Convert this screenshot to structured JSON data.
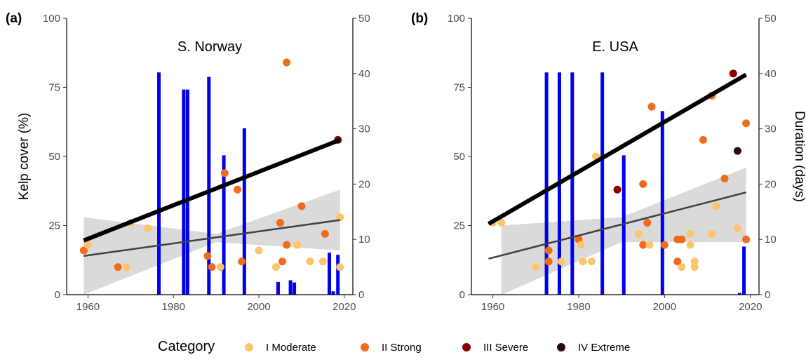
{
  "legend": {
    "title": "Category",
    "items": [
      {
        "label": "I Moderate",
        "color": "#fdc46c"
      },
      {
        "label": "II Strong",
        "color": "#f26a1b"
      },
      {
        "label": "III Severe",
        "color": "#8b0000"
      },
      {
        "label": "IV Extreme",
        "color": "#2a0a0a"
      }
    ]
  },
  "chart_data": [
    {
      "type": "scatter",
      "panel_label": "(a)",
      "title": "S. Norway",
      "ylabel": "Kelp cover (%)",
      "y2label": "",
      "xlim": [
        1955,
        2022
      ],
      "ylim": [
        0,
        100
      ],
      "y2lim": [
        0,
        50
      ],
      "xticks": [
        1960,
        1980,
        2000,
        2020
      ],
      "yticks": [
        0,
        25,
        50,
        75,
        100
      ],
      "y2ticks": [
        0,
        10,
        20,
        30,
        40,
        50
      ],
      "ribbon_color": "#d3d3d3",
      "bar_color": "#0000ee",
      "bars": [
        {
          "x": 1976.6,
          "y2": 40.2
        },
        {
          "x": 1982.4,
          "y2": 37.1
        },
        {
          "x": 1983.3,
          "y2": 37.1
        },
        {
          "x": 1988.3,
          "y2": 39.4
        },
        {
          "x": 1991.8,
          "y2": 25.2
        },
        {
          "x": 1996.6,
          "y2": 30.1
        },
        {
          "x": 2004.5,
          "y2": 2.3
        },
        {
          "x": 2007.4,
          "y2": 2.6
        },
        {
          "x": 2008.3,
          "y2": 2.2
        },
        {
          "x": 2016.5,
          "y2": 7.6
        },
        {
          "x": 2017.4,
          "y2": 0.6
        },
        {
          "x": 2018.5,
          "y2": 7.2
        }
      ],
      "points": [
        {
          "x": 1959,
          "y": 16,
          "category": 2
        },
        {
          "x": 1960,
          "y": 18,
          "category": 1
        },
        {
          "x": 1967,
          "y": 10,
          "category": 2
        },
        {
          "x": 1969,
          "y": 10,
          "category": 1
        },
        {
          "x": 1970,
          "y": 26,
          "category": 1
        },
        {
          "x": 1974,
          "y": 24,
          "category": 1
        },
        {
          "x": 1989,
          "y": 10,
          "category": 2
        },
        {
          "x": 1988,
          "y": 14,
          "category": 2
        },
        {
          "x": 1991,
          "y": 10,
          "category": 1
        },
        {
          "x": 1992,
          "y": 44,
          "category": 2
        },
        {
          "x": 1995,
          "y": 38,
          "category": 2
        },
        {
          "x": 1996,
          "y": 12,
          "category": 2
        },
        {
          "x": 2000,
          "y": 16,
          "category": 1
        },
        {
          "x": 2004,
          "y": 10,
          "category": 1
        },
        {
          "x": 2005,
          "y": 26,
          "category": 2
        },
        {
          "x": 2005.5,
          "y": 12,
          "category": 2
        },
        {
          "x": 2006.5,
          "y": 84,
          "category": 2
        },
        {
          "x": 2006.5,
          "y": 18,
          "category": 2
        },
        {
          "x": 2009,
          "y": 18,
          "category": 1
        },
        {
          "x": 2010,
          "y": 32,
          "category": 2
        },
        {
          "x": 2012,
          "y": 12,
          "category": 1
        },
        {
          "x": 2015,
          "y": 12,
          "category": 1
        },
        {
          "x": 2015.5,
          "y": 22,
          "category": 2
        },
        {
          "x": 2018.5,
          "y": 56,
          "category": 3
        },
        {
          "x": 2019,
          "y": 28,
          "category": 1
        },
        {
          "x": 2019,
          "y": 10,
          "category": 1
        }
      ],
      "fit_line": {
        "x": [
          1959,
          2019
        ],
        "y": [
          14,
          27
        ]
      },
      "ribbon": {
        "x": [
          1959,
          1990,
          2019
        ],
        "lower": [
          0,
          19,
          16
        ],
        "upper": [
          28,
          22,
          38
        ]
      },
      "duration_trend": {
        "x": [
          1959,
          2019
        ],
        "y2": [
          9.8,
          28
        ]
      }
    },
    {
      "type": "scatter",
      "panel_label": "(b)",
      "title": "E. USA",
      "ylabel": "",
      "y2label": "Duration (days)",
      "xlim": [
        1955,
        2022
      ],
      "ylim": [
        0,
        100
      ],
      "y2lim": [
        0,
        50
      ],
      "xticks": [
        1960,
        1980,
        2000,
        2020
      ],
      "yticks": [
        0,
        25,
        50,
        75,
        100
      ],
      "y2ticks": [
        0,
        10,
        20,
        30,
        40,
        50
      ],
      "ribbon_color": "#d3d3d3",
      "bar_color": "#0000ee",
      "bars": [
        {
          "x": 1972.5,
          "y2": 40.2
        },
        {
          "x": 1975.5,
          "y2": 40.2
        },
        {
          "x": 1978.5,
          "y2": 40.2
        },
        {
          "x": 1985.5,
          "y2": 40.2
        },
        {
          "x": 1990.5,
          "y2": 25.2
        },
        {
          "x": 1999.5,
          "y2": 33.2
        },
        {
          "x": 2017.5,
          "y2": 0.3
        },
        {
          "x": 2018.5,
          "y2": 8.7
        }
      ],
      "points": [
        {
          "x": 1960,
          "y": 26,
          "category": 1
        },
        {
          "x": 1962,
          "y": 26,
          "category": 1
        },
        {
          "x": 1970,
          "y": 10,
          "category": 1
        },
        {
          "x": 1973,
          "y": 16,
          "category": 2
        },
        {
          "x": 1973,
          "y": 12,
          "category": 2
        },
        {
          "x": 1976,
          "y": 12,
          "category": 1
        },
        {
          "x": 1980,
          "y": 20,
          "category": 2
        },
        {
          "x": 1980.5,
          "y": 18,
          "category": 1
        },
        {
          "x": 1981,
          "y": 12,
          "category": 1
        },
        {
          "x": 1983,
          "y": 12,
          "category": 1
        },
        {
          "x": 1984,
          "y": 50,
          "category": 1
        },
        {
          "x": 1989,
          "y": 38,
          "category": 3
        },
        {
          "x": 1994,
          "y": 22,
          "category": 1
        },
        {
          "x": 1995,
          "y": 40,
          "category": 2
        },
        {
          "x": 1995,
          "y": 18,
          "category": 2
        },
        {
          "x": 1996,
          "y": 26,
          "category": 2
        },
        {
          "x": 1996.5,
          "y": 18,
          "category": 1
        },
        {
          "x": 1997,
          "y": 68,
          "category": 2
        },
        {
          "x": 2000,
          "y": 18,
          "category": 2
        },
        {
          "x": 2003,
          "y": 20,
          "category": 2
        },
        {
          "x": 2003,
          "y": 12,
          "category": 2
        },
        {
          "x": 2004,
          "y": 20,
          "category": 2
        },
        {
          "x": 2004,
          "y": 10,
          "category": 1
        },
        {
          "x": 2006,
          "y": 22,
          "category": 1
        },
        {
          "x": 2006,
          "y": 18,
          "category": 1
        },
        {
          "x": 2007,
          "y": 12,
          "category": 1
        },
        {
          "x": 2007,
          "y": 10,
          "category": 1
        },
        {
          "x": 2009,
          "y": 56,
          "category": 2
        },
        {
          "x": 2011,
          "y": 72,
          "category": 2
        },
        {
          "x": 2011,
          "y": 22,
          "category": 1
        },
        {
          "x": 2012,
          "y": 32,
          "category": 1
        },
        {
          "x": 2014,
          "y": 42,
          "category": 2
        },
        {
          "x": 2016,
          "y": 80,
          "category": 3
        },
        {
          "x": 2017,
          "y": 52,
          "category": 4
        },
        {
          "x": 2017,
          "y": 24,
          "category": 1
        },
        {
          "x": 2019,
          "y": 62,
          "category": 2
        },
        {
          "x": 2019,
          "y": 20,
          "category": 2
        }
      ],
      "fit_line": {
        "x": [
          1959,
          2019
        ],
        "y": [
          13,
          37
        ]
      },
      "ribbon": {
        "x": [
          1962,
          1990,
          2019
        ],
        "lower": [
          0,
          19,
          19
        ],
        "upper": [
          25,
          28,
          46
        ]
      },
      "duration_trend": {
        "x": [
          1959,
          2019
        ],
        "y2": [
          12.8,
          39.8
        ]
      }
    }
  ]
}
